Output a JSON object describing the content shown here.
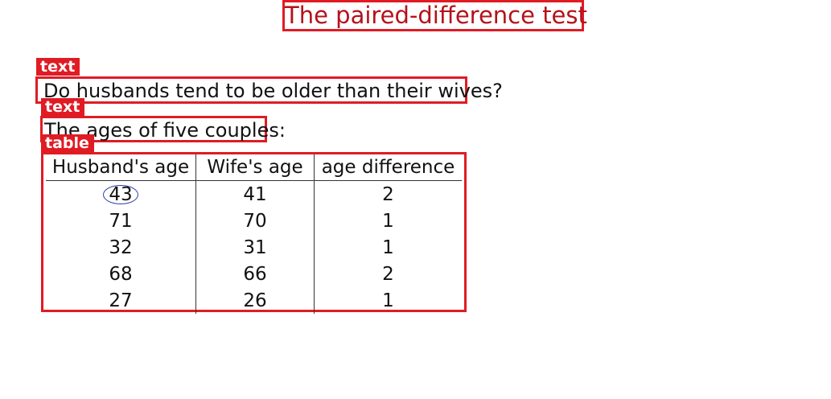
{
  "title": "The paired-difference test",
  "labels": {
    "text1": "text",
    "text2": "text",
    "table": "table"
  },
  "question": "Do husbands tend to be older than their wives?",
  "subtitle": "The ages of five couples:",
  "table": {
    "headers": [
      "Husband's age",
      "Wife's age",
      "age difference"
    ],
    "rows": [
      [
        "43",
        "41",
        "2"
      ],
      [
        "71",
        "70",
        "1"
      ],
      [
        "32",
        "31",
        "1"
      ],
      [
        "68",
        "66",
        "2"
      ],
      [
        "27",
        "26",
        "1"
      ]
    ]
  },
  "colors": {
    "annotation": "#e01b24",
    "title": "#b5121b",
    "circle": "#2a3fa8"
  }
}
